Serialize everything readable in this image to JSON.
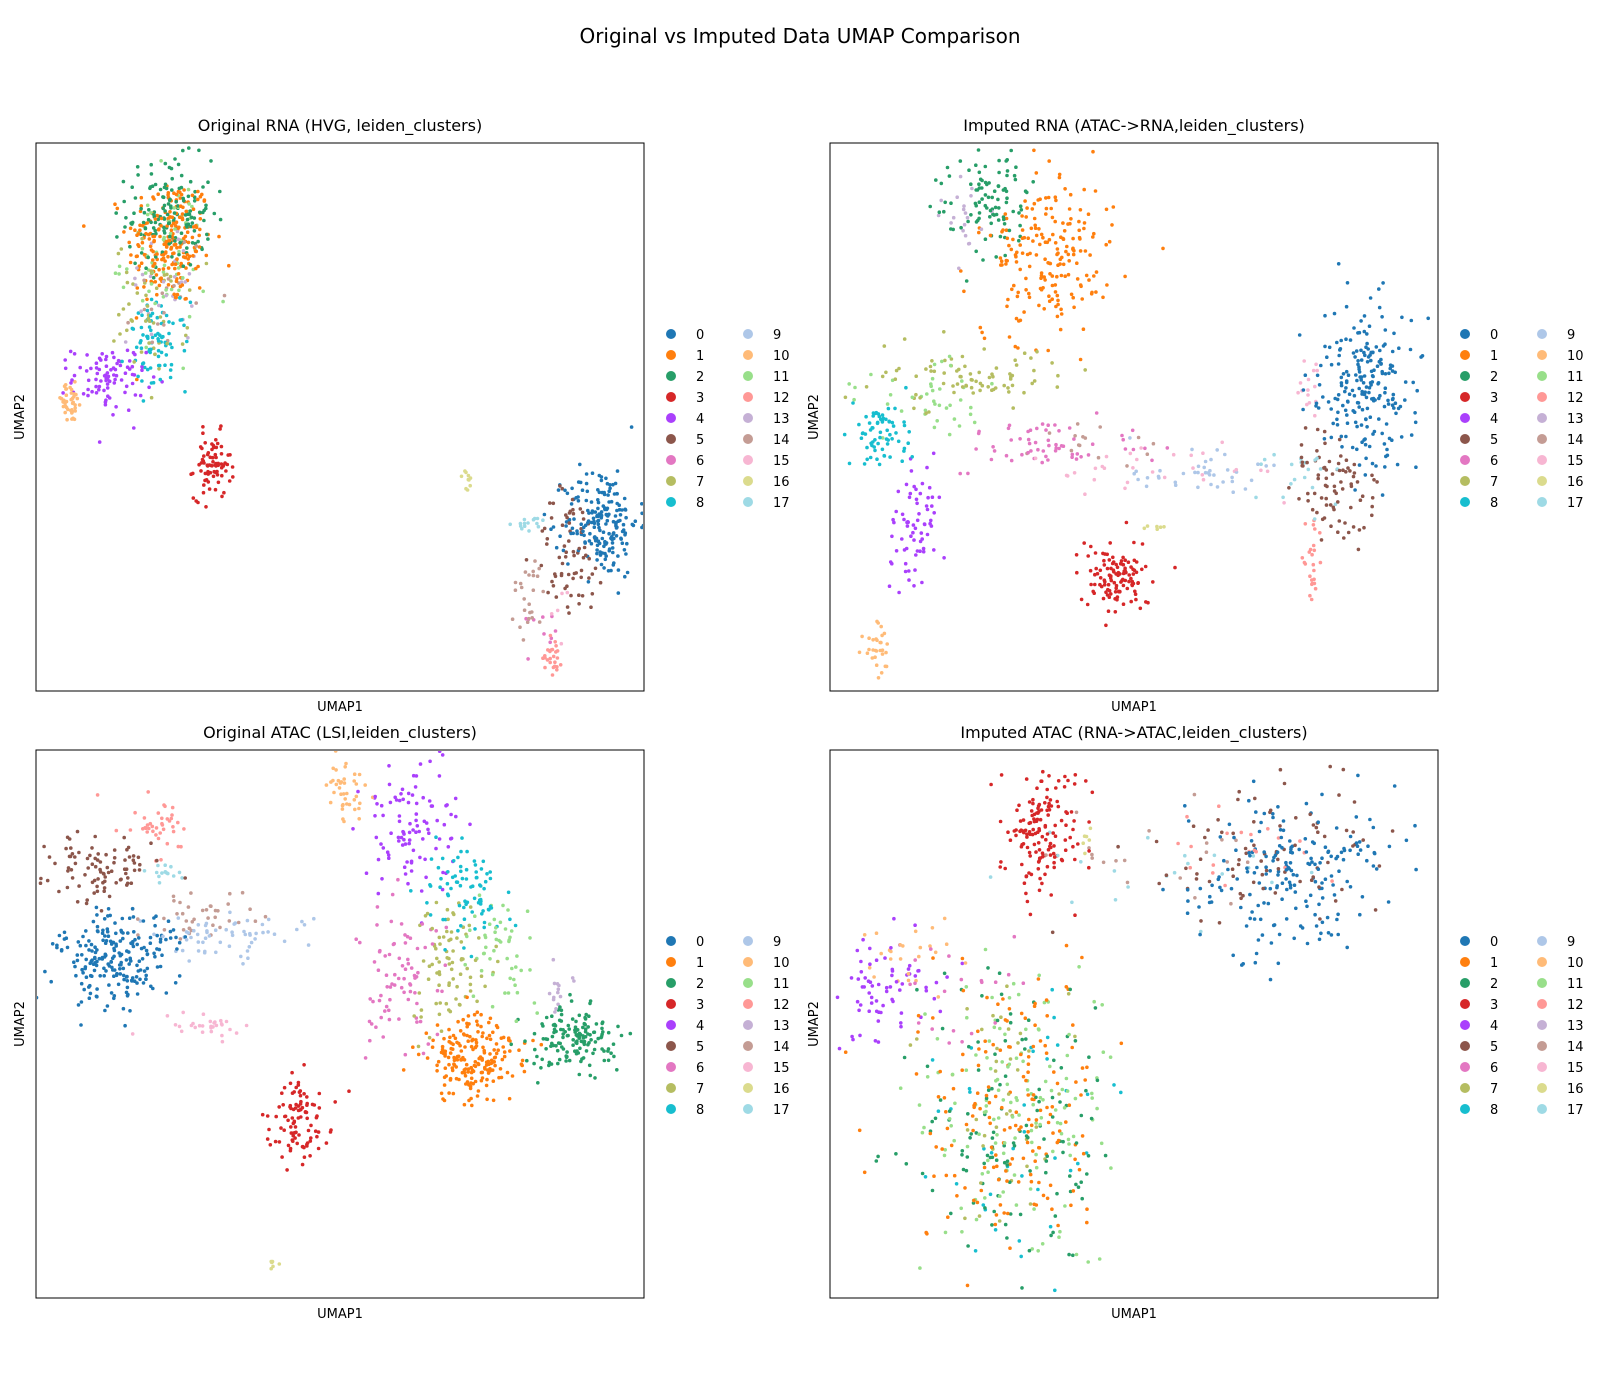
{
  "figure": {
    "title": "Original vs Imputed Data UMAP Comparison"
  },
  "palette": [
    "#1f77b4",
    "#ff7f0e",
    "#279e68",
    "#d62728",
    "#aa40fc",
    "#8c564b",
    "#e377c2",
    "#b5bd61",
    "#17becf",
    "#aec7e8",
    "#ffbb78",
    "#98df8a",
    "#ff9896",
    "#c5b0d5",
    "#c49c94",
    "#f7b6d2",
    "#dbdb8d",
    "#9edae5"
  ],
  "chart_data": [
    {
      "type": "scatter",
      "title": "Original RNA (HVG, leiden_clusters)",
      "xlabel": "UMAP1",
      "ylabel": "UMAP2",
      "xlim": [
        0,
        100
      ],
      "ylim": [
        0,
        100
      ],
      "grid": false,
      "legend_position": "right",
      "legend": [
        "0",
        "1",
        "2",
        "3",
        "4",
        "5",
        "6",
        "7",
        "8",
        "9",
        "10",
        "11",
        "12",
        "13",
        "14",
        "15",
        "16",
        "17"
      ],
      "clusters": [
        {
          "label": "1",
          "x": 22,
          "y": 82,
          "sx": 3.5,
          "sy": 6,
          "n": 220
        },
        {
          "label": "2",
          "x": 22,
          "y": 87,
          "sx": 3.5,
          "sy": 5,
          "n": 150
        },
        {
          "label": "11",
          "x": 21,
          "y": 79,
          "sx": 3.5,
          "sy": 7,
          "n": 60
        },
        {
          "label": "8",
          "x": 20,
          "y": 63,
          "sx": 2.5,
          "sy": 4,
          "n": 80
        },
        {
          "label": "7",
          "x": 19,
          "y": 70,
          "sx": 3,
          "sy": 6,
          "n": 50
        },
        {
          "label": "13",
          "x": 21,
          "y": 75,
          "sx": 3,
          "sy": 6,
          "n": 30
        },
        {
          "label": "14",
          "x": 22,
          "y": 73,
          "sx": 3,
          "sy": 6,
          "n": 20
        },
        {
          "label": "4",
          "x": 12,
          "y": 57,
          "sx": 3,
          "sy": 3,
          "n": 90
        },
        {
          "label": "10",
          "x": 5.5,
          "y": 52.5,
          "sx": 1.2,
          "sy": 1.8,
          "n": 40
        },
        {
          "label": "3",
          "x": 29,
          "y": 41,
          "sx": 1.5,
          "sy": 3,
          "n": 80
        },
        {
          "label": "16",
          "x": 71,
          "y": 38,
          "sx": 0.4,
          "sy": 1.2,
          "n": 10
        },
        {
          "label": "0",
          "x": 93,
          "y": 31,
          "sx": 3,
          "sy": 5,
          "n": 200
        },
        {
          "label": "5",
          "x": 88,
          "y": 25,
          "sx": 3,
          "sy": 6,
          "n": 70
        },
        {
          "label": "17",
          "x": 82,
          "y": 30.5,
          "sx": 1.5,
          "sy": 0.6,
          "n": 15
        },
        {
          "label": "14",
          "x": 81,
          "y": 17,
          "sx": 1.5,
          "sy": 4,
          "n": 25
        },
        {
          "label": "12",
          "x": 85,
          "y": 7,
          "sx": 0.8,
          "sy": 2,
          "n": 25
        },
        {
          "label": "6",
          "x": 84,
          "y": 13,
          "sx": 1.5,
          "sy": 3,
          "n": 10
        },
        {
          "label": "15",
          "x": 86,
          "y": 15,
          "sx": 1,
          "sy": 3,
          "n": 5
        }
      ]
    },
    {
      "type": "scatter",
      "title": "Imputed RNA (ATAC->RNA,leiden_clusters)",
      "xlabel": "UMAP1",
      "ylabel": "UMAP2",
      "xlim": [
        0,
        100
      ],
      "ylim": [
        0,
        100
      ],
      "grid": false,
      "legend_position": "right",
      "legend": [
        "0",
        "1",
        "2",
        "3",
        "4",
        "5",
        "6",
        "7",
        "8",
        "9",
        "10",
        "11",
        "12",
        "13",
        "14",
        "15",
        "16",
        "17"
      ],
      "clusters": [
        {
          "label": "2",
          "x": 26,
          "y": 90,
          "sx": 4,
          "sy": 5,
          "n": 100
        },
        {
          "label": "1",
          "x": 36,
          "y": 79,
          "sx": 5,
          "sy": 8,
          "n": 200
        },
        {
          "label": "13",
          "x": 22,
          "y": 86,
          "sx": 2,
          "sy": 3,
          "n": 20
        },
        {
          "label": "7",
          "x": 23,
          "y": 57,
          "sx": 8,
          "sy": 3,
          "n": 80
        },
        {
          "label": "8",
          "x": 8,
          "y": 47,
          "sx": 2.5,
          "sy": 3,
          "n": 70
        },
        {
          "label": "11",
          "x": 16,
          "y": 55,
          "sx": 6,
          "sy": 4,
          "n": 40
        },
        {
          "label": "4",
          "x": 14,
          "y": 28,
          "sx": 2,
          "sy": 6,
          "n": 70
        },
        {
          "label": "10",
          "x": 8,
          "y": 8,
          "sx": 1,
          "sy": 3,
          "n": 30
        },
        {
          "label": "6",
          "x": 37,
          "y": 45,
          "sx": 7,
          "sy": 3,
          "n": 60
        },
        {
          "label": "3",
          "x": 47,
          "y": 21,
          "sx": 3,
          "sy": 3,
          "n": 120
        },
        {
          "label": "9",
          "x": 60,
          "y": 40,
          "sx": 7,
          "sy": 2,
          "n": 40
        },
        {
          "label": "15",
          "x": 55,
          "y": 40,
          "sx": 10,
          "sy": 2,
          "n": 30
        },
        {
          "label": "16",
          "x": 53,
          "y": 30,
          "sx": 1,
          "sy": 0.5,
          "n": 6
        },
        {
          "label": "0",
          "x": 88,
          "y": 55,
          "sx": 4,
          "sy": 8,
          "n": 220
        },
        {
          "label": "5",
          "x": 83,
          "y": 38,
          "sx": 3,
          "sy": 5,
          "n": 80
        },
        {
          "label": "12",
          "x": 79,
          "y": 24,
          "sx": 1,
          "sy": 4,
          "n": 25
        },
        {
          "label": "15",
          "x": 79,
          "y": 55,
          "sx": 1.5,
          "sy": 3,
          "n": 15
        },
        {
          "label": "17",
          "x": 77,
          "y": 40,
          "sx": 3,
          "sy": 3,
          "n": 20
        },
        {
          "label": "14",
          "x": 44,
          "y": 45,
          "sx": 5,
          "sy": 3,
          "n": 15
        }
      ]
    },
    {
      "type": "scatter",
      "title": "Original ATAC (LSI,leiden_clusters)",
      "xlabel": "UMAP1",
      "ylabel": "UMAP2",
      "xlim": [
        0,
        100
      ],
      "ylim": [
        0,
        100
      ],
      "grid": false,
      "legend_position": "right",
      "legend": [
        "0",
        "1",
        "2",
        "3",
        "4",
        "5",
        "6",
        "7",
        "8",
        "9",
        "10",
        "11",
        "12",
        "13",
        "14",
        "15",
        "16",
        "17"
      ],
      "clusters": [
        {
          "label": "0",
          "x": 13,
          "y": 62,
          "sx": 5,
          "sy": 4,
          "n": 220
        },
        {
          "label": "5",
          "x": 10,
          "y": 79,
          "sx": 5,
          "sy": 3,
          "n": 90
        },
        {
          "label": "12",
          "x": 20,
          "y": 86,
          "sx": 3,
          "sy": 2.5,
          "n": 40
        },
        {
          "label": "17",
          "x": 21,
          "y": 78,
          "sx": 1.5,
          "sy": 1.2,
          "n": 15
        },
        {
          "label": "9",
          "x": 31,
          "y": 66,
          "sx": 6,
          "sy": 2,
          "n": 60
        },
        {
          "label": "14",
          "x": 27,
          "y": 70,
          "sx": 5,
          "sy": 3,
          "n": 40
        },
        {
          "label": "15",
          "x": 27,
          "y": 50,
          "sx": 5,
          "sy": 1.5,
          "n": 30
        },
        {
          "label": "3",
          "x": 43,
          "y": 32,
          "sx": 2.5,
          "sy": 4,
          "n": 100
        },
        {
          "label": "16",
          "x": 39,
          "y": 6,
          "sx": 0.5,
          "sy": 0.6,
          "n": 6
        },
        {
          "label": "10",
          "x": 51,
          "y": 93,
          "sx": 1.5,
          "sy": 3,
          "n": 40
        },
        {
          "label": "4",
          "x": 62,
          "y": 86,
          "sx": 4,
          "sy": 6,
          "n": 100
        },
        {
          "label": "8",
          "x": 71,
          "y": 74,
          "sx": 3,
          "sy": 4,
          "n": 80
        },
        {
          "label": "6",
          "x": 60,
          "y": 57,
          "sx": 3,
          "sy": 8,
          "n": 80
        },
        {
          "label": "7",
          "x": 68,
          "y": 62,
          "sx": 3,
          "sy": 6,
          "n": 80
        },
        {
          "label": "11",
          "x": 76,
          "y": 63,
          "sx": 3,
          "sy": 5,
          "n": 50
        },
        {
          "label": "1",
          "x": 72,
          "y": 44,
          "sx": 4,
          "sy": 4,
          "n": 200
        },
        {
          "label": "2",
          "x": 89,
          "y": 47,
          "sx": 3.5,
          "sy": 3,
          "n": 150
        },
        {
          "label": "13",
          "x": 86,
          "y": 57,
          "sx": 1.2,
          "sy": 2,
          "n": 15
        }
      ]
    },
    {
      "type": "scatter",
      "title": "Imputed ATAC (RNA->ATAC,leiden_clusters)",
      "xlabel": "UMAP1",
      "ylabel": "UMAP2",
      "xlim": [
        0,
        100
      ],
      "ylim": [
        0,
        100
      ],
      "grid": false,
      "legend_position": "right",
      "legend": [
        "0",
        "1",
        "2",
        "3",
        "4",
        "5",
        "6",
        "7",
        "8",
        "9",
        "10",
        "11",
        "12",
        "13",
        "14",
        "15",
        "16",
        "17"
      ],
      "clusters": [
        {
          "label": "3",
          "x": 35,
          "y": 86,
          "sx": 3.5,
          "sy": 5,
          "n": 150
        },
        {
          "label": "16",
          "x": 42,
          "y": 84,
          "sx": 0.6,
          "sy": 1.2,
          "n": 6
        },
        {
          "label": "0",
          "x": 76,
          "y": 78,
          "sx": 9,
          "sy": 7,
          "n": 200
        },
        {
          "label": "5",
          "x": 72,
          "y": 80,
          "sx": 10,
          "sy": 6,
          "n": 80
        },
        {
          "label": "17",
          "x": 55,
          "y": 78,
          "sx": 10,
          "sy": 4,
          "n": 20
        },
        {
          "label": "14",
          "x": 58,
          "y": 80,
          "sx": 10,
          "sy": 4,
          "n": 20
        },
        {
          "label": "12",
          "x": 70,
          "y": 82,
          "sx": 8,
          "sy": 4,
          "n": 20
        },
        {
          "label": "4",
          "x": 10,
          "y": 56,
          "sx": 4,
          "sy": 5,
          "n": 70
        },
        {
          "label": "10",
          "x": 12,
          "y": 63,
          "sx": 5,
          "sy": 4,
          "n": 25
        },
        {
          "label": "1",
          "x": 30,
          "y": 32,
          "sx": 8,
          "sy": 14,
          "n": 170
        },
        {
          "label": "2",
          "x": 30,
          "y": 30,
          "sx": 8,
          "sy": 14,
          "n": 130
        },
        {
          "label": "11",
          "x": 30,
          "y": 35,
          "sx": 8,
          "sy": 14,
          "n": 140
        },
        {
          "label": "7",
          "x": 28,
          "y": 35,
          "sx": 7,
          "sy": 12,
          "n": 40
        },
        {
          "label": "8",
          "x": 30,
          "y": 28,
          "sx": 7,
          "sy": 12,
          "n": 40
        },
        {
          "label": "6",
          "x": 20,
          "y": 55,
          "sx": 7,
          "sy": 6,
          "n": 20
        }
      ]
    }
  ]
}
